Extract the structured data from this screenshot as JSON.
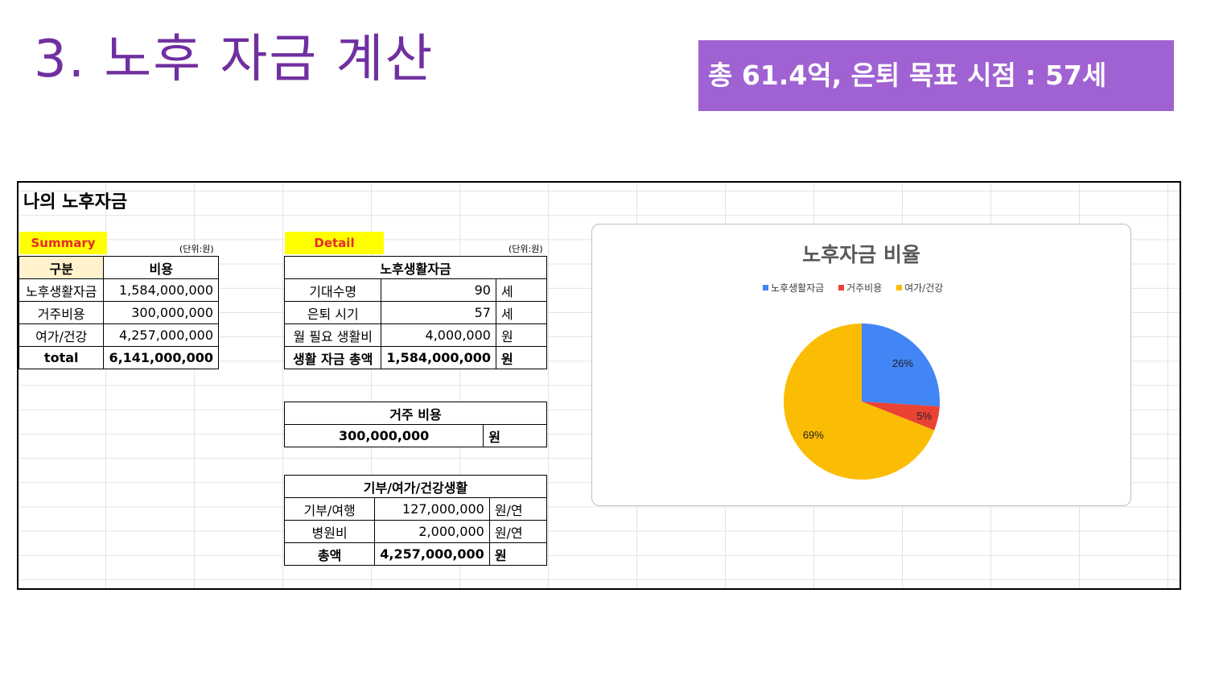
{
  "slide": {
    "title": "3. 노후 자금 계산",
    "banner": "총 61.4억, 은퇴 목표 시점  : 57세"
  },
  "sheet": {
    "title": "나의 노후자금",
    "summary": {
      "label": "Summary",
      "unit": "(단위:원)",
      "headers": [
        "구분",
        "비용"
      ],
      "rows": [
        {
          "label": "노후생활자금",
          "value": "1,584,000,000"
        },
        {
          "label": "거주비용",
          "value": "300,000,000"
        },
        {
          "label": "여가/건강",
          "value": "4,257,000,000"
        },
        {
          "label": "total",
          "value": "6,141,000,000"
        }
      ]
    },
    "detail": {
      "label": "Detail",
      "unit": "(단위:원)",
      "living": {
        "title": "노후생활자금",
        "rows": [
          {
            "label": "기대수명",
            "value": "90",
            "unit": "세"
          },
          {
            "label": "은퇴 시기",
            "value": "57",
            "unit": "세"
          },
          {
            "label": "월 필요 생활비",
            "value": "4,000,000",
            "unit": "원"
          },
          {
            "label": "생활 자금 총액",
            "value": "1,584,000,000",
            "unit": "원"
          }
        ]
      },
      "housing": {
        "title": "거주 비용",
        "value": "300,000,000",
        "unit": "원"
      },
      "leisure": {
        "title": "기부/여가/건강생활",
        "rows": [
          {
            "label": "기부/여행",
            "value": "127,000,000",
            "unit": "원/연"
          },
          {
            "label": "병원비",
            "value": "2,000,000",
            "unit": "원/연"
          },
          {
            "label": "총액",
            "value": "4,257,000,000",
            "unit": "원"
          }
        ]
      }
    }
  },
  "chart_data": {
    "type": "pie",
    "title": "노후자금 비율",
    "legend_position": "top",
    "categories": [
      "노후생활자금",
      "거주비용",
      "여가/건강"
    ],
    "values": [
      26,
      5,
      69
    ],
    "labels": [
      "26%",
      "5%",
      "69%"
    ],
    "colors": [
      "#4285f4",
      "#ea4335",
      "#fbbc04"
    ]
  }
}
